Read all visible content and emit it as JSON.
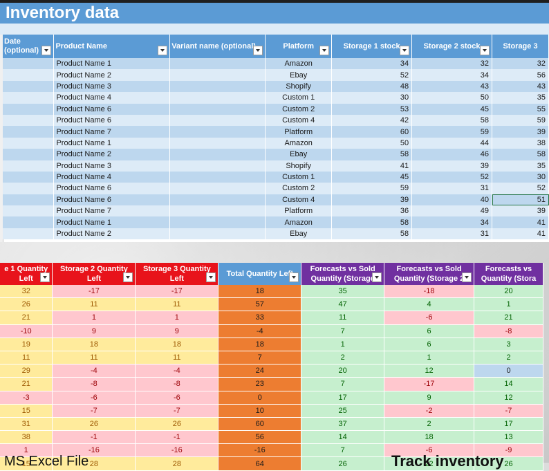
{
  "sheet1": {
    "title": "Inventory data",
    "columns": [
      {
        "label_line1": "Date",
        "label_line2": "(optional)"
      },
      {
        "label_line1": "Product Name",
        "label_line2": ""
      },
      {
        "label_line1": "Variant name (optional)",
        "label_line2": ""
      },
      {
        "label_line1": "Platform",
        "label_line2": ""
      },
      {
        "label_line1": "Storage 1 stock",
        "label_line2": ""
      },
      {
        "label_line1": "Storage 2 stock",
        "label_line2": ""
      },
      {
        "label_line1": "Storage 3",
        "label_line2": ""
      }
    ],
    "rows": [
      {
        "date": "",
        "product": "Product Name 1",
        "variant": "",
        "platform": "Amazon",
        "s1": "34",
        "s2": "32",
        "s3": "32"
      },
      {
        "date": "",
        "product": "Product Name 2",
        "variant": "",
        "platform": "Ebay",
        "s1": "52",
        "s2": "34",
        "s3": "56"
      },
      {
        "date": "",
        "product": "Product Name 3",
        "variant": "",
        "platform": "Shopify",
        "s1": "48",
        "s2": "43",
        "s3": "43"
      },
      {
        "date": "",
        "product": "Product Name 4",
        "variant": "",
        "platform": "Custom 1",
        "s1": "30",
        "s2": "50",
        "s3": "35"
      },
      {
        "date": "",
        "product": "Product Name 6",
        "variant": "",
        "platform": "Custom 2",
        "s1": "53",
        "s2": "45",
        "s3": "55"
      },
      {
        "date": "",
        "product": "Product Name 6",
        "variant": "",
        "platform": "Custom 4",
        "s1": "42",
        "s2": "58",
        "s3": "59"
      },
      {
        "date": "",
        "product": "Product Name 7",
        "variant": "",
        "platform": "Platform",
        "s1": "60",
        "s2": "59",
        "s3": "39"
      },
      {
        "date": "",
        "product": "Product Name 1",
        "variant": "",
        "platform": "Amazon",
        "s1": "50",
        "s2": "44",
        "s3": "38"
      },
      {
        "date": "",
        "product": "Product Name 2",
        "variant": "",
        "platform": "Ebay",
        "s1": "58",
        "s2": "46",
        "s3": "58"
      },
      {
        "date": "",
        "product": "Product Name 3",
        "variant": "",
        "platform": "Shopify",
        "s1": "41",
        "s2": "39",
        "s3": "35"
      },
      {
        "date": "",
        "product": "Product Name 4",
        "variant": "",
        "platform": "Custom 1",
        "s1": "45",
        "s2": "52",
        "s3": "30"
      },
      {
        "date": "",
        "product": "Product Name 6",
        "variant": "",
        "platform": "Custom 2",
        "s1": "59",
        "s2": "31",
        "s3": "52"
      },
      {
        "date": "",
        "product": "Product Name 6",
        "variant": "",
        "platform": "Custom 4",
        "s1": "39",
        "s2": "40",
        "s3": "51"
      },
      {
        "date": "",
        "product": "Product Name 7",
        "variant": "",
        "platform": "Platform",
        "s1": "36",
        "s2": "49",
        "s3": "39"
      },
      {
        "date": "",
        "product": "Product Name 1",
        "variant": "",
        "platform": "Amazon",
        "s1": "58",
        "s2": "34",
        "s3": "41"
      },
      {
        "date": "",
        "product": "Product Name 2",
        "variant": "",
        "platform": "Ebay",
        "s1": "58",
        "s2": "31",
        "s3": "41"
      }
    ]
  },
  "sheet2": {
    "columns": [
      {
        "line1": "e 1 Quantity",
        "line2": "Left",
        "color": "red"
      },
      {
        "line1": "Storage 2 Quantity",
        "line2": "Left",
        "color": "red"
      },
      {
        "line1": "Storage 3 Quantity",
        "line2": "Left",
        "color": "red"
      },
      {
        "line1": "Total Quantity Left",
        "line2": "",
        "color": "blue"
      },
      {
        "line1": "Forecasts vs Sold",
        "line2": "Quantity (Storage",
        "color": "purple"
      },
      {
        "line1": "Forecasts vs Sold",
        "line2": "Quantity (Storage 2",
        "color": "purple"
      },
      {
        "line1": "Forecasts vs",
        "line2": "Quantity (Stora",
        "color": "purple"
      }
    ],
    "rows": [
      {
        "cells": [
          "32",
          "-17",
          "-17",
          "18",
          "35",
          "-18",
          "20"
        ],
        "styles": [
          "yel",
          "pink",
          "pink",
          "org",
          "grn",
          "pink",
          "grn"
        ]
      },
      {
        "cells": [
          "26",
          "11",
          "11",
          "57",
          "47",
          "4",
          "1"
        ],
        "styles": [
          "yel",
          "yel",
          "yel",
          "org",
          "grn",
          "grn",
          "grn"
        ]
      },
      {
        "cells": [
          "21",
          "1",
          "1",
          "33",
          "11",
          "-6",
          "21"
        ],
        "styles": [
          "yel",
          "pink",
          "pink",
          "org",
          "grn",
          "pink",
          "grn"
        ]
      },
      {
        "cells": [
          "-10",
          "9",
          "9",
          "-4",
          "7",
          "6",
          "-8"
        ],
        "styles": [
          "pink",
          "pink",
          "pink",
          "org",
          "grn",
          "grn",
          "pink"
        ]
      },
      {
        "cells": [
          "19",
          "18",
          "18",
          "18",
          "1",
          "6",
          "3"
        ],
        "styles": [
          "yel",
          "yel",
          "yel",
          "org",
          "grn",
          "grn",
          "grn"
        ]
      },
      {
        "cells": [
          "11",
          "11",
          "11",
          "7",
          "2",
          "1",
          "2"
        ],
        "styles": [
          "yel",
          "yel",
          "yel",
          "org",
          "grn",
          "grn",
          "grn"
        ]
      },
      {
        "cells": [
          "29",
          "-4",
          "-4",
          "24",
          "20",
          "12",
          "0"
        ],
        "styles": [
          "yel",
          "pink",
          "pink",
          "org",
          "grn",
          "grn",
          "blu"
        ]
      },
      {
        "cells": [
          "21",
          "-8",
          "-8",
          "23",
          "7",
          "-17",
          "14"
        ],
        "styles": [
          "yel",
          "pink",
          "pink",
          "org",
          "grn",
          "pink",
          "grn"
        ]
      },
      {
        "cells": [
          "-3",
          "-6",
          "-6",
          "0",
          "17",
          "9",
          "12"
        ],
        "styles": [
          "pink",
          "pink",
          "pink",
          "org",
          "grn",
          "grn",
          "grn"
        ]
      },
      {
        "cells": [
          "15",
          "-7",
          "-7",
          "10",
          "25",
          "-2",
          "-7"
        ],
        "styles": [
          "yel",
          "pink",
          "pink",
          "org",
          "grn",
          "pink",
          "pink"
        ]
      },
      {
        "cells": [
          "31",
          "26",
          "26",
          "60",
          "37",
          "2",
          "17"
        ],
        "styles": [
          "yel",
          "yel",
          "yel",
          "org",
          "grn",
          "grn",
          "grn"
        ]
      },
      {
        "cells": [
          "38",
          "-1",
          "-1",
          "56",
          "14",
          "18",
          "13"
        ],
        "styles": [
          "yel",
          "pink",
          "pink",
          "org",
          "grn",
          "grn",
          "grn"
        ]
      },
      {
        "cells": [
          "1",
          "-16",
          "-16",
          "-16",
          "7",
          "-6",
          "-9"
        ],
        "styles": [
          "pink",
          "pink",
          "pink",
          "org",
          "grn",
          "pink",
          "pink"
        ]
      },
      {
        "cells": [
          "15",
          "28",
          "28",
          "64",
          "26",
          "22",
          "26"
        ],
        "styles": [
          "yel",
          "yel",
          "yel",
          "org",
          "grn",
          "grn",
          "grn"
        ]
      }
    ]
  },
  "footer": {
    "left": "MS Excel File",
    "right": "Track inventory"
  }
}
